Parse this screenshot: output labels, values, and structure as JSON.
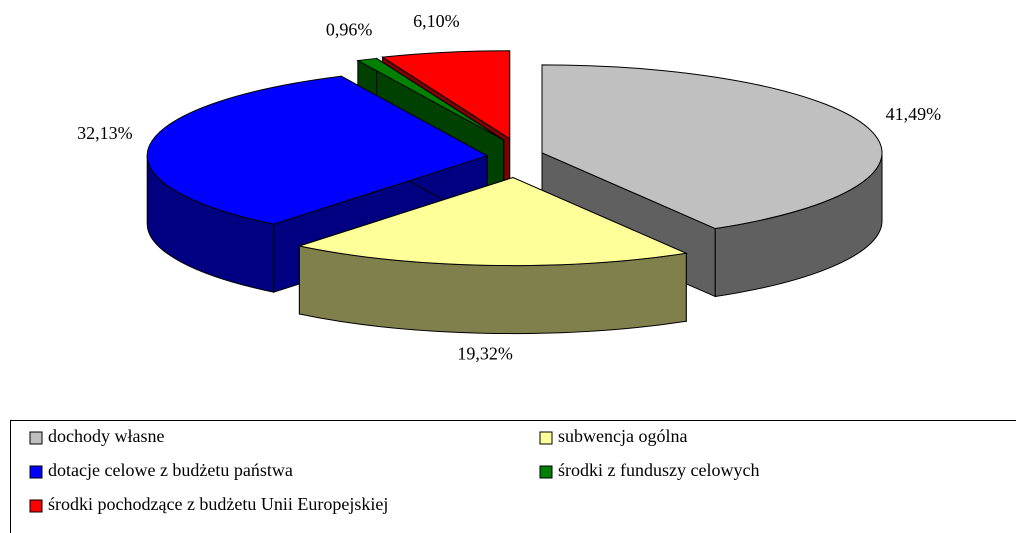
{
  "chart_data": {
    "type": "pie",
    "categories": [
      "dochody własne",
      "subwencja ogólna",
      "dotacje celowe z budżetu państwa",
      "środki z funduszy celowych",
      "środki pochodzące z budżetu Unii Europejskiej"
    ],
    "values": [
      41.49,
      19.32,
      32.13,
      0.96,
      6.1
    ],
    "value_labels": [
      "41,49%",
      "19,32%",
      "32,13%",
      "0,96%",
      "6,10%"
    ],
    "colors": [
      "#c0c0c0",
      "#ffff99",
      "#0000ff",
      "#008000",
      "#ff0000"
    ],
    "legend": "bottom"
  }
}
